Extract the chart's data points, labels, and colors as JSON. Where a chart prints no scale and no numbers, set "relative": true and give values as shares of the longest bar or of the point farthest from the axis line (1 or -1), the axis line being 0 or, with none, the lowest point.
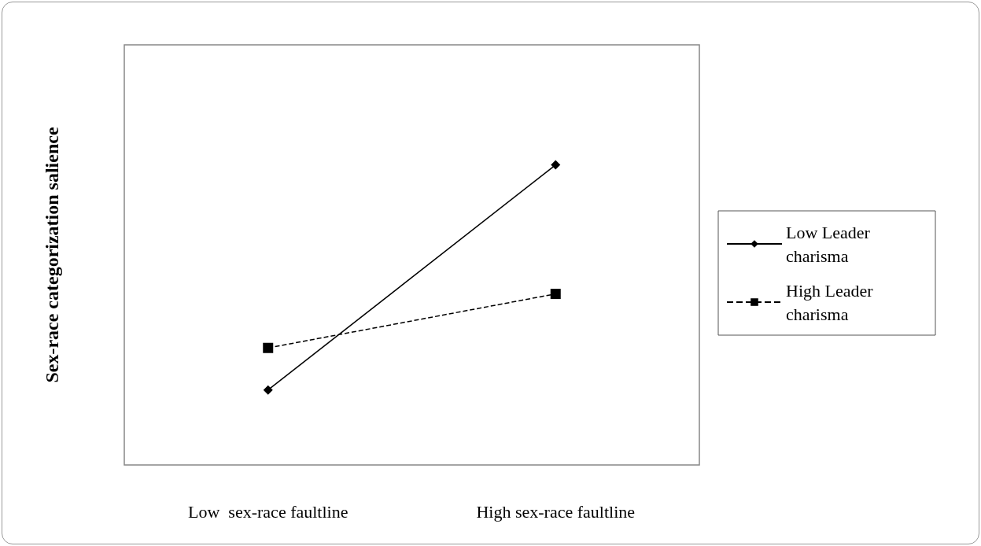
{
  "chart_data": {
    "type": "line",
    "ylabel": "Sex-race categorization salience",
    "categories": [
      "Low  sex-race faultline",
      "High sex-race faultline"
    ],
    "relative": true,
    "legend": "right",
    "grid": false,
    "series": [
      {
        "name": "Low Leader charisma",
        "color": "#000000",
        "values": [
          0.25,
          1
        ],
        "marker": "diamond",
        "line_style": "solid"
      },
      {
        "name": "High Leader charisma",
        "color": "#000000",
        "values": [
          0.39,
          0.57
        ],
        "marker": "square",
        "line_style": "dashed"
      }
    ]
  }
}
